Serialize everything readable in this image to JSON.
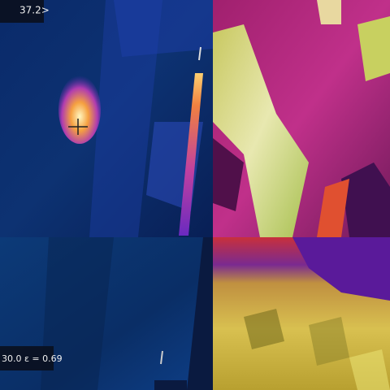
{
  "top_left": {
    "readout": "37.2>"
  },
  "bottom_left": {
    "readout": "30.0 ε = 0.69"
  }
}
